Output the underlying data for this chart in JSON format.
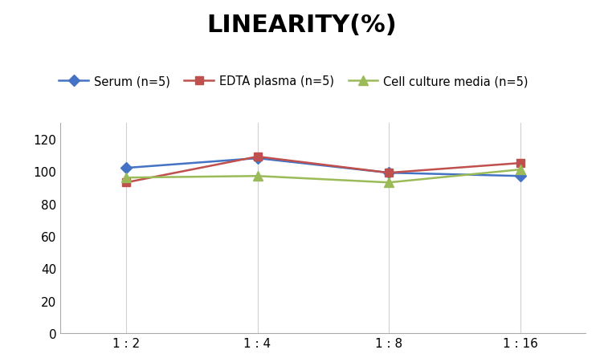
{
  "title": "LINEARITY(%)",
  "x_labels": [
    "1 : 2",
    "1 : 4",
    "1 : 8",
    "1 : 16"
  ],
  "x_positions": [
    0,
    1,
    2,
    3
  ],
  "series": [
    {
      "label": "Serum (n=5)",
      "values": [
        102,
        108,
        99,
        97
      ],
      "color": "#4472C4",
      "marker": "D",
      "markersize": 7
    },
    {
      "label": "EDTA plasma (n=5)",
      "values": [
        93,
        109,
        99,
        105
      ],
      "color": "#C0504D",
      "marker": "s",
      "markersize": 7
    },
    {
      "label": "Cell culture media (n=5)",
      "values": [
        96,
        97,
        93,
        101
      ],
      "color": "#9BBB59",
      "marker": "^",
      "markersize": 8
    }
  ],
  "ylim": [
    0,
    130
  ],
  "yticks": [
    0,
    20,
    40,
    60,
    80,
    100,
    120
  ],
  "background_color": "#FFFFFF",
  "grid_color": "#D0D0D0",
  "title_fontsize": 22,
  "legend_fontsize": 10.5,
  "tick_fontsize": 11
}
